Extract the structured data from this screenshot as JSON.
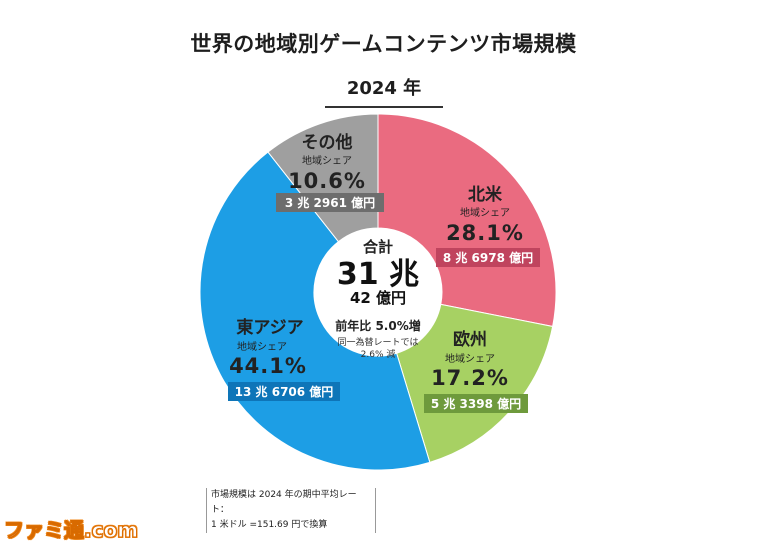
{
  "header": {
    "title": "世界の地域別ゲームコンテンツ市場規模",
    "year": "2024 年"
  },
  "chart_data": {
    "type": "pie",
    "style": "donut",
    "title": "世界の地域別ゲームコンテンツ市場規模",
    "subtitle": "2024 年",
    "slices": [
      {
        "name": "北米",
        "share_label": "地域シェア",
        "value": 28.1,
        "share_text": "28.1%",
        "amount": "8 兆 6978 億円",
        "color": "#ea6b80",
        "amount_bg": "#c0445e"
      },
      {
        "name": "欧州",
        "share_label": "地域シェア",
        "value": 17.2,
        "share_text": "17.2%",
        "amount": "5 兆 3398 億円",
        "color": "#a7d163",
        "amount_bg": "#6e9a3c"
      },
      {
        "name": "東アジア",
        "share_label": "地域シェア",
        "value": 44.1,
        "share_text": "44.1%",
        "amount": "13 兆 6706 億円",
        "color": "#1d9ee5",
        "amount_bg": "#0e75b8"
      },
      {
        "name": "その他",
        "share_label": "地域シェア",
        "value": 10.6,
        "share_text": "10.6%",
        "amount": "3 兆 2961 億円",
        "color": "#9f9f9f",
        "amount_bg": "#6d6d6d"
      }
    ],
    "center": {
      "label": "合計",
      "total_main": "31 兆",
      "total_sub": "42 億円",
      "yoy": "前年比 5.0%増",
      "note1": "同一為替レートでは",
      "note2": "2.6% 減"
    }
  },
  "footnote": {
    "line1": "市場規模は 2024 年の期中平均レート：",
    "line2": "1 米ドル =151.69 円で換算"
  },
  "watermark": "ファミ通.com"
}
